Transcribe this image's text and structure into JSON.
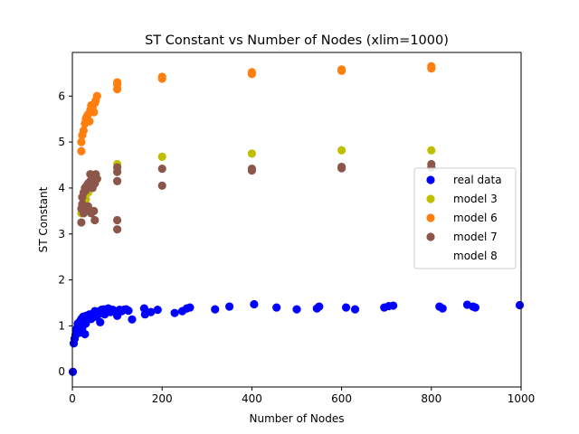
{
  "chart_data": {
    "type": "scatter",
    "title": "ST Constant vs Number of Nodes (xlim=1000)",
    "xlabel": "Number of Nodes",
    "ylabel": "ST Constant",
    "xlim": [
      0,
      1000
    ],
    "ylim": [
      -0.33,
      6.95
    ],
    "xticks": [
      0,
      200,
      400,
      600,
      800,
      1000
    ],
    "yticks": [
      0,
      1,
      2,
      3,
      4,
      5,
      6
    ],
    "grid": false,
    "legend_position": "center-right",
    "series": [
      {
        "name": "real data",
        "color": "#0000ff",
        "x": [
          1,
          3,
          5,
          7,
          8,
          10,
          12,
          13,
          15,
          17,
          18,
          20,
          22,
          24,
          25,
          27,
          28,
          30,
          31,
          33,
          35,
          36,
          38,
          40,
          42,
          45,
          48,
          50,
          52,
          55,
          58,
          60,
          62,
          65,
          68,
          70,
          72,
          75,
          80,
          85,
          90,
          95,
          100,
          105,
          110,
          115,
          120,
          125,
          133,
          160,
          162,
          175,
          190,
          228,
          245,
          255,
          262,
          318,
          350,
          405,
          455,
          500,
          545,
          550,
          610,
          630,
          695,
          705,
          715,
          818,
          825,
          880,
          893,
          898,
          997
        ],
        "y": [
          0.0,
          0.62,
          0.72,
          0.8,
          0.9,
          0.95,
          1.05,
          1.0,
          0.85,
          1.1,
          0.88,
          1.15,
          0.95,
          1.2,
          1.1,
          1.2,
          0.82,
          1.05,
          1.22,
          1.15,
          1.2,
          1.18,
          1.25,
          1.2,
          1.15,
          1.22,
          1.28,
          1.32,
          1.2,
          1.3,
          1.25,
          1.32,
          1.08,
          1.35,
          1.3,
          1.36,
          1.25,
          1.33,
          1.38,
          1.3,
          1.35,
          1.3,
          1.22,
          1.35,
          1.32,
          1.35,
          1.36,
          1.33,
          1.14,
          1.38,
          1.25,
          1.3,
          1.35,
          1.28,
          1.32,
          1.38,
          1.4,
          1.36,
          1.42,
          1.47,
          1.4,
          1.36,
          1.38,
          1.42,
          1.4,
          1.36,
          1.4,
          1.43,
          1.44,
          1.42,
          1.38,
          1.46,
          1.42,
          1.4,
          1.45
        ]
      },
      {
        "name": "model 3",
        "color": "#bfbf00",
        "x": [
          20,
          25,
          30,
          35,
          40,
          45,
          50,
          55,
          100,
          200,
          400,
          600,
          800
        ],
        "y": [
          3.45,
          3.6,
          3.75,
          3.9,
          4.0,
          4.05,
          4.1,
          4.2,
          4.52,
          4.68,
          4.75,
          4.82,
          4.82
        ]
      },
      {
        "name": "model 6",
        "color": "#ff7f0e",
        "x": [
          20,
          20,
          22,
          25,
          28,
          30,
          32,
          35,
          38,
          40,
          42,
          45,
          48,
          50,
          52,
          55,
          100,
          100,
          100,
          200,
          200,
          400,
          400,
          600,
          600,
          800,
          800
        ],
        "y": [
          4.8,
          5.0,
          5.15,
          5.25,
          5.4,
          5.5,
          5.55,
          5.6,
          5.45,
          5.7,
          5.8,
          5.75,
          5.65,
          5.85,
          5.9,
          6.0,
          6.15,
          6.25,
          6.3,
          6.38,
          6.42,
          6.48,
          6.52,
          6.55,
          6.58,
          6.6,
          6.65
        ]
      },
      {
        "name": "model 7",
        "color": "#8c564b",
        "x": [
          20,
          20,
          22,
          22,
          25,
          25,
          28,
          28,
          30,
          30,
          32,
          35,
          35,
          38,
          40,
          40,
          42,
          45,
          45,
          48,
          50,
          50,
          52,
          55,
          100,
          100,
          100,
          100,
          100,
          200,
          200,
          400,
          400,
          600,
          600,
          800,
          800
        ],
        "y": [
          3.25,
          3.55,
          3.65,
          3.8,
          3.45,
          3.9,
          3.6,
          4.0,
          3.5,
          3.95,
          4.05,
          3.6,
          4.1,
          3.5,
          4.15,
          4.3,
          3.45,
          4.0,
          4.25,
          3.5,
          3.3,
          4.1,
          4.3,
          4.2,
          3.1,
          3.3,
          4.15,
          4.35,
          4.45,
          4.05,
          4.42,
          4.38,
          4.42,
          4.43,
          4.46,
          4.45,
          4.52
        ]
      },
      {
        "name": "model 8",
        "color": "#ffffff",
        "x": [],
        "y": []
      }
    ]
  }
}
